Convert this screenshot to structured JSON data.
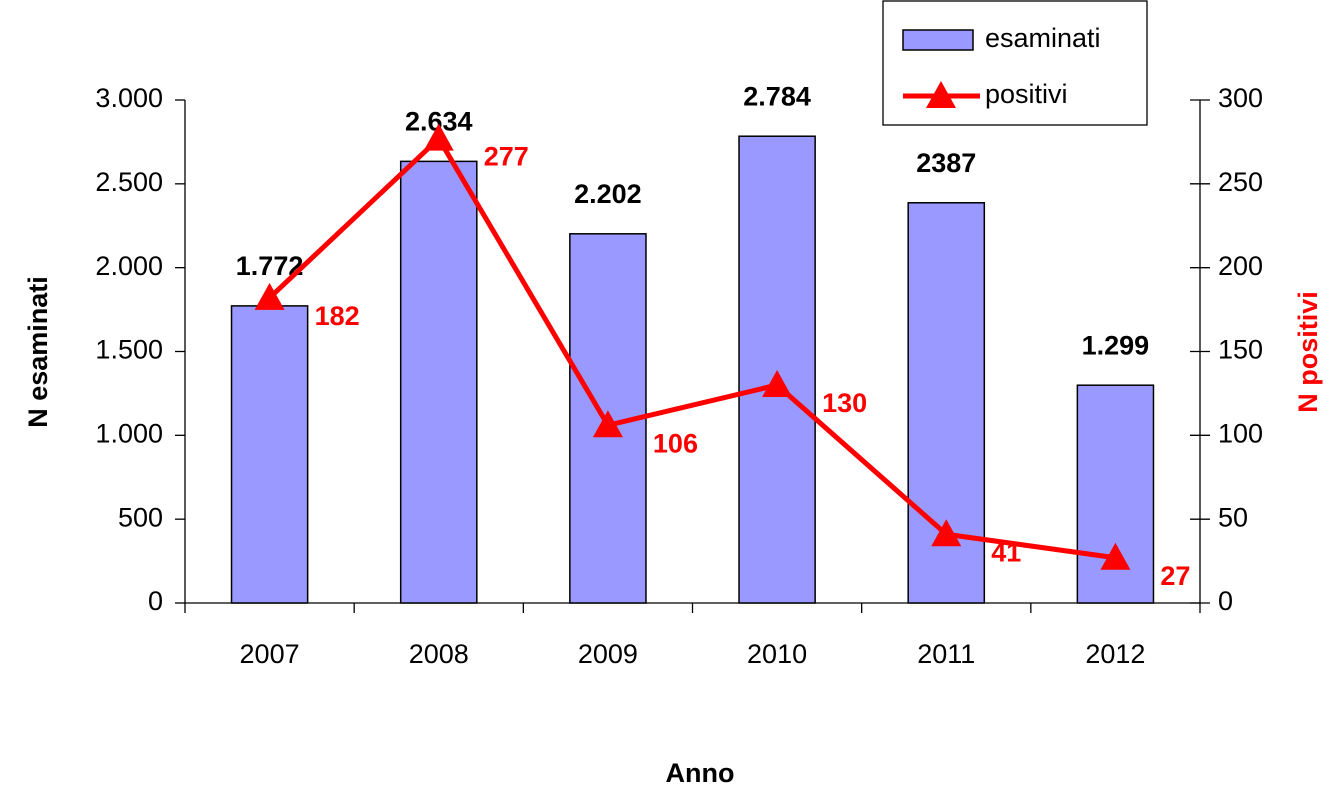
{
  "chart_data": {
    "type": "bar",
    "categories": [
      "2007",
      "2008",
      "2009",
      "2010",
      "2011",
      "2012"
    ],
    "series": [
      {
        "name": "esaminati",
        "type": "bar",
        "color": "#9999ff",
        "values": [
          1772,
          2634,
          2202,
          2784,
          2387,
          1299
        ],
        "value_labels": [
          "1.772",
          "2.634",
          "2.202",
          "2.784",
          "2387",
          "1.299"
        ]
      },
      {
        "name": "positivi",
        "type": "line",
        "axis": "y2",
        "color": "#ff0000",
        "values": [
          182,
          277,
          106,
          130,
          41,
          27
        ]
      }
    ],
    "ylabel": "N esaminati",
    "y2label": "N positivi",
    "xlabel": "Anno",
    "ylim": [
      0,
      3000
    ],
    "yticks": [
      0,
      500,
      {
        "value": 1000,
        "label": "1.000"
      },
      {
        "value": 1500,
        "label": "1.500"
      },
      {
        "value": 2000,
        "label": "2.000"
      },
      {
        "value": 2500,
        "label": "2.500"
      },
      {
        "value": 3000,
        "label": "3.000"
      }
    ],
    "y2lim": [
      0,
      300
    ],
    "y2ticks": [
      0,
      50,
      100,
      150,
      200,
      250,
      300
    ],
    "legend": "upper right"
  }
}
